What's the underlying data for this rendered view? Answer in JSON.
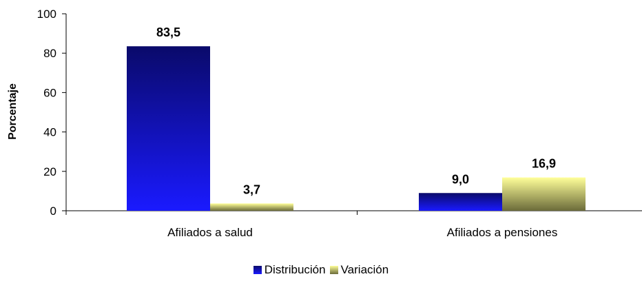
{
  "chart_data": {
    "type": "bar",
    "categories": [
      "Afiliados a salud",
      "Afiliados a pensiones"
    ],
    "series": [
      {
        "name": "Distribución",
        "values": [
          83.5,
          9.0
        ],
        "labels": [
          "83,5",
          "9,0"
        ],
        "color_top": "#0a0a6a",
        "color_bottom": "#1a1aff"
      },
      {
        "name": "Variación",
        "values": [
          3.7,
          16.9
        ],
        "labels": [
          "3,7",
          "16,9"
        ],
        "color_top": "#ffff99",
        "color_bottom": "#6b6b3a"
      }
    ],
    "ylabel": "Porcentaje",
    "ylim": [
      0,
      100
    ],
    "yticks": [
      "0",
      "20",
      "40",
      "60",
      "80",
      "100"
    ],
    "ytick_values": [
      0,
      20,
      40,
      60,
      80,
      100
    ],
    "legend_position": "bottom",
    "grid": false
  }
}
